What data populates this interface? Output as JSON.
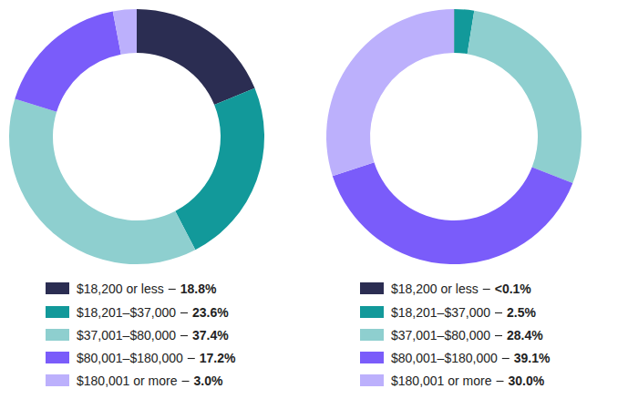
{
  "chart_data": [
    {
      "type": "donut",
      "categories": [
        "$18,200 or less",
        "$18,201–$37,000",
        "$37,001–$80,000",
        "$80,001–$180,000",
        "$180,001 or more"
      ],
      "values": [
        18.8,
        23.6,
        37.4,
        17.2,
        3.0
      ],
      "value_labels": [
        "18.8%",
        "23.6%",
        "37.4%",
        "17.2%",
        "3.0%"
      ],
      "colors": [
        "#2b2d52",
        "#12999a",
        "#8ecfcf",
        "#7a5cfa",
        "#bcb0fc"
      ]
    },
    {
      "type": "donut",
      "categories": [
        "$18,200 or less",
        "$18,201–$37,000",
        "$37,001–$80,000",
        "$80,001–$180,000",
        "$180,001 or more"
      ],
      "values": [
        0.05,
        2.5,
        28.4,
        39.1,
        30.0
      ],
      "value_labels": [
        "<0.1%",
        "2.5%",
        "28.4%",
        "39.1%",
        "30.0%"
      ],
      "colors": [
        "#2b2d52",
        "#12999a",
        "#8ecfcf",
        "#7a5cfa",
        "#bcb0fc"
      ]
    }
  ]
}
